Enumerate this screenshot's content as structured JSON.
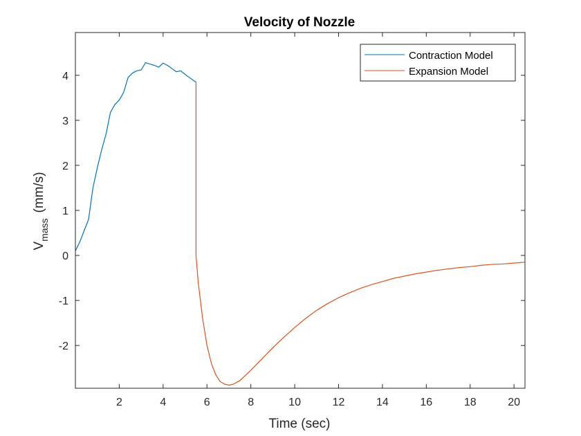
{
  "chart_data": {
    "type": "line",
    "title": "Velocity of Nozzle",
    "xlabel": "Time (sec)",
    "ylabel": {
      "main": "V",
      "subscript": "mass",
      "unit": "(mm/s)"
    },
    "xlim": [
      0,
      20.5
    ],
    "ylim": [
      -2.95,
      4.95
    ],
    "xticks": [
      2,
      4,
      6,
      8,
      10,
      12,
      14,
      16,
      18,
      20
    ],
    "xtick_labels": [
      "2",
      "4",
      "6",
      "8",
      "10",
      "12",
      "14",
      "16",
      "18",
      "20"
    ],
    "yticks": [
      -2,
      -1,
      0,
      1,
      2,
      3,
      4
    ],
    "ytick_labels": [
      "-2",
      "-1",
      "0",
      "1",
      "2",
      "3",
      "4"
    ],
    "grid": false,
    "box": true,
    "legend_position": "top-right",
    "series": [
      {
        "name": "Contraction Model",
        "color": "#0072BD",
        "x": [
          0.0,
          0.2,
          0.4,
          0.6,
          0.8,
          1.0,
          1.2,
          1.4,
          1.6,
          1.8,
          2.0,
          2.2,
          2.4,
          2.6,
          2.8,
          3.0,
          3.2,
          3.4,
          3.6,
          3.8,
          4.0,
          4.2,
          4.4,
          4.6,
          4.8,
          5.0,
          5.2,
          5.4,
          5.5
        ],
        "y": [
          0.1,
          0.3,
          0.55,
          0.8,
          1.5,
          1.95,
          2.35,
          2.7,
          3.18,
          3.35,
          3.45,
          3.62,
          3.95,
          4.05,
          4.1,
          4.12,
          4.28,
          4.25,
          4.22,
          4.18,
          4.27,
          4.22,
          4.15,
          4.08,
          4.1,
          4.02,
          3.95,
          3.88,
          3.85
        ]
      },
      {
        "name": "Expansion Model",
        "color": "#D95319",
        "x": [
          5.5,
          5.5,
          5.6,
          5.8,
          6.0,
          6.2,
          6.4,
          6.6,
          6.8,
          7.0,
          7.2,
          7.5,
          8.0,
          8.5,
          9.0,
          9.5,
          10.0,
          10.5,
          11.0,
          11.5,
          12.0,
          12.5,
          13.0,
          13.5,
          14.0,
          14.5,
          15.0,
          15.5,
          16.0,
          16.5,
          17.0,
          17.5,
          18.0,
          18.5,
          19.0,
          19.5,
          20.0,
          20.5
        ],
        "y": [
          3.85,
          0.0,
          -0.6,
          -1.4,
          -2.0,
          -2.4,
          -2.65,
          -2.8,
          -2.86,
          -2.88,
          -2.86,
          -2.78,
          -2.55,
          -2.3,
          -2.05,
          -1.82,
          -1.6,
          -1.4,
          -1.22,
          -1.07,
          -0.94,
          -0.83,
          -0.73,
          -0.65,
          -0.58,
          -0.51,
          -0.46,
          -0.41,
          -0.37,
          -0.33,
          -0.3,
          -0.27,
          -0.25,
          -0.22,
          -0.2,
          -0.19,
          -0.17,
          -0.15
        ]
      }
    ]
  }
}
